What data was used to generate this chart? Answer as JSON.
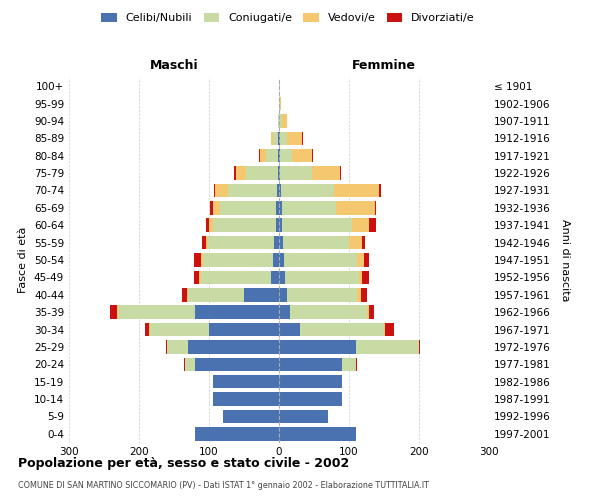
{
  "age_groups": [
    "0-4",
    "5-9",
    "10-14",
    "15-19",
    "20-24",
    "25-29",
    "30-34",
    "35-39",
    "40-44",
    "45-49",
    "50-54",
    "55-59",
    "60-64",
    "65-69",
    "70-74",
    "75-79",
    "80-84",
    "85-89",
    "90-94",
    "95-99",
    "100+"
  ],
  "birth_years": [
    "1997-2001",
    "1992-1996",
    "1987-1991",
    "1982-1986",
    "1977-1981",
    "1972-1976",
    "1967-1971",
    "1962-1966",
    "1957-1961",
    "1952-1956",
    "1947-1951",
    "1942-1946",
    "1937-1941",
    "1932-1936",
    "1927-1931",
    "1922-1926",
    "1917-1921",
    "1912-1916",
    "1907-1911",
    "1902-1906",
    "≤ 1901"
  ],
  "males": {
    "celibi": [
      120,
      80,
      95,
      95,
      120,
      130,
      100,
      120,
      50,
      12,
      9,
      7,
      5,
      5,
      3,
      2,
      1,
      1,
      0,
      0,
      0
    ],
    "coniugati": [
      0,
      0,
      0,
      0,
      15,
      30,
      85,
      110,
      80,
      100,
      100,
      95,
      90,
      80,
      70,
      45,
      18,
      8,
      2,
      0,
      0
    ],
    "vedovi": [
      0,
      0,
      0,
      0,
      0,
      0,
      1,
      2,
      1,
      2,
      2,
      3,
      5,
      10,
      18,
      15,
      8,
      3,
      0,
      0,
      0
    ],
    "divorziati": [
      0,
      0,
      0,
      0,
      1,
      2,
      5,
      10,
      7,
      8,
      10,
      5,
      5,
      3,
      2,
      2,
      2,
      0,
      0,
      0,
      0
    ]
  },
  "females": {
    "nubili": [
      110,
      70,
      90,
      90,
      90,
      110,
      30,
      15,
      12,
      9,
      7,
      5,
      4,
      4,
      3,
      2,
      1,
      1,
      0,
      0,
      0
    ],
    "coniugate": [
      0,
      0,
      0,
      0,
      20,
      90,
      120,
      110,
      100,
      105,
      105,
      95,
      100,
      78,
      75,
      45,
      18,
      10,
      4,
      1,
      0
    ],
    "vedove": [
      0,
      0,
      0,
      0,
      0,
      0,
      2,
      3,
      5,
      5,
      10,
      18,
      25,
      55,
      65,
      40,
      28,
      22,
      8,
      2,
      0
    ],
    "divorziate": [
      0,
      0,
      0,
      0,
      1,
      2,
      12,
      8,
      8,
      10,
      7,
      5,
      10,
      2,
      2,
      2,
      1,
      1,
      0,
      0,
      0
    ]
  },
  "colors": {
    "celibi_nubili": "#4a72b0",
    "coniugati": "#c8dba4",
    "vedovi": "#f5c870",
    "divorziati": "#cc1111"
  },
  "title": "Popolazione per età, sesso e stato civile - 2002",
  "subtitle": "COMUNE DI SAN MARTINO SICCOMARIO (PV) - Dati ISTAT 1° gennaio 2002 - Elaborazione TUTTITALIA.IT",
  "ylabel_left": "Fasce di età",
  "ylabel_right": "Anni di nascita",
  "xlabel_left": "Maschi",
  "xlabel_right": "Femmine",
  "xlim": 300,
  "bg_color": "#ffffff",
  "grid_color": "#cccccc"
}
